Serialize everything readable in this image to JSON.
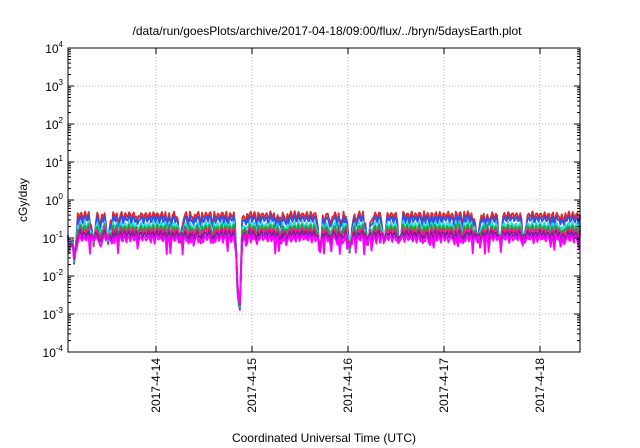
{
  "chart_data": {
    "type": "line",
    "title": "/data/run/goesPlots/archive/2017-04-18/09:00/flux/../bryn/5daysEarth.plot",
    "xlabel": "Coordinated Universal Time (UTC)",
    "ylabel": "cGy/day",
    "yscale": "log",
    "ylim": [
      0.0001,
      10000
    ],
    "xlim": [
      "2017-04-13T02:00",
      "2017-04-18T10:00"
    ],
    "grid": true,
    "y_ticks": [
      {
        "base": "10",
        "exp": "-4"
      },
      {
        "base": "10",
        "exp": "-3"
      },
      {
        "base": "10",
        "exp": "-2"
      },
      {
        "base": "10",
        "exp": "-1"
      },
      {
        "base": "10",
        "exp": "0"
      },
      {
        "base": "10",
        "exp": "1"
      },
      {
        "base": "10",
        "exp": "2"
      },
      {
        "base": "10",
        "exp": "3"
      },
      {
        "base": "10",
        "exp": "4"
      }
    ],
    "x_ticks": [
      {
        "label": "2017-4-14",
        "date": "2017-04-14"
      },
      {
        "label": "2017-4-15",
        "date": "2017-04-15"
      },
      {
        "label": "2017-4-16",
        "date": "2017-04-16"
      },
      {
        "label": "2017-4-17",
        "date": "2017-04-17"
      },
      {
        "label": "2017-4-18",
        "date": "2017-04-18"
      }
    ],
    "series": [
      {
        "color": "#e8232a",
        "level": 0.4
      },
      {
        "color": "#2a55e8",
        "level": 0.32
      },
      {
        "color": "#28e0d8",
        "level": 0.22
      },
      {
        "color": "#2aa02a",
        "level": 0.18
      },
      {
        "color": "#ff1493",
        "level": 0.15
      },
      {
        "color": "#7a1fa0",
        "level": 0.125
      },
      {
        "color": "#ff00ff",
        "level": 0.1
      }
    ],
    "dips": [
      {
        "date": "2017-04-13T02:24",
        "min": 0.03
      },
      {
        "date": "2017-04-13T03:36",
        "min": 0.015
      },
      {
        "date": "2017-04-13T08:24",
        "min": 0.06
      },
      {
        "date": "2017-04-13T12:00",
        "min": 0.06
      },
      {
        "date": "2017-04-14T06:00",
        "min": 0.07
      },
      {
        "date": "2017-04-14T20:24",
        "min": 0.008
      },
      {
        "date": "2017-04-14T20:52",
        "min": 0.0006
      },
      {
        "date": "2017-04-15T17:00",
        "min": 0.035
      },
      {
        "date": "2017-04-16T00:30",
        "min": 0.03
      },
      {
        "date": "2017-04-16T05:00",
        "min": 0.06
      },
      {
        "date": "2017-04-16T09:00",
        "min": 0.06
      },
      {
        "date": "2017-04-16T13:00",
        "min": 0.06
      },
      {
        "date": "2017-04-17T08:20",
        "min": 0.065
      },
      {
        "date": "2017-04-17T14:00",
        "min": 0.065
      },
      {
        "date": "2017-04-17T20:00",
        "min": 0.07
      }
    ]
  }
}
